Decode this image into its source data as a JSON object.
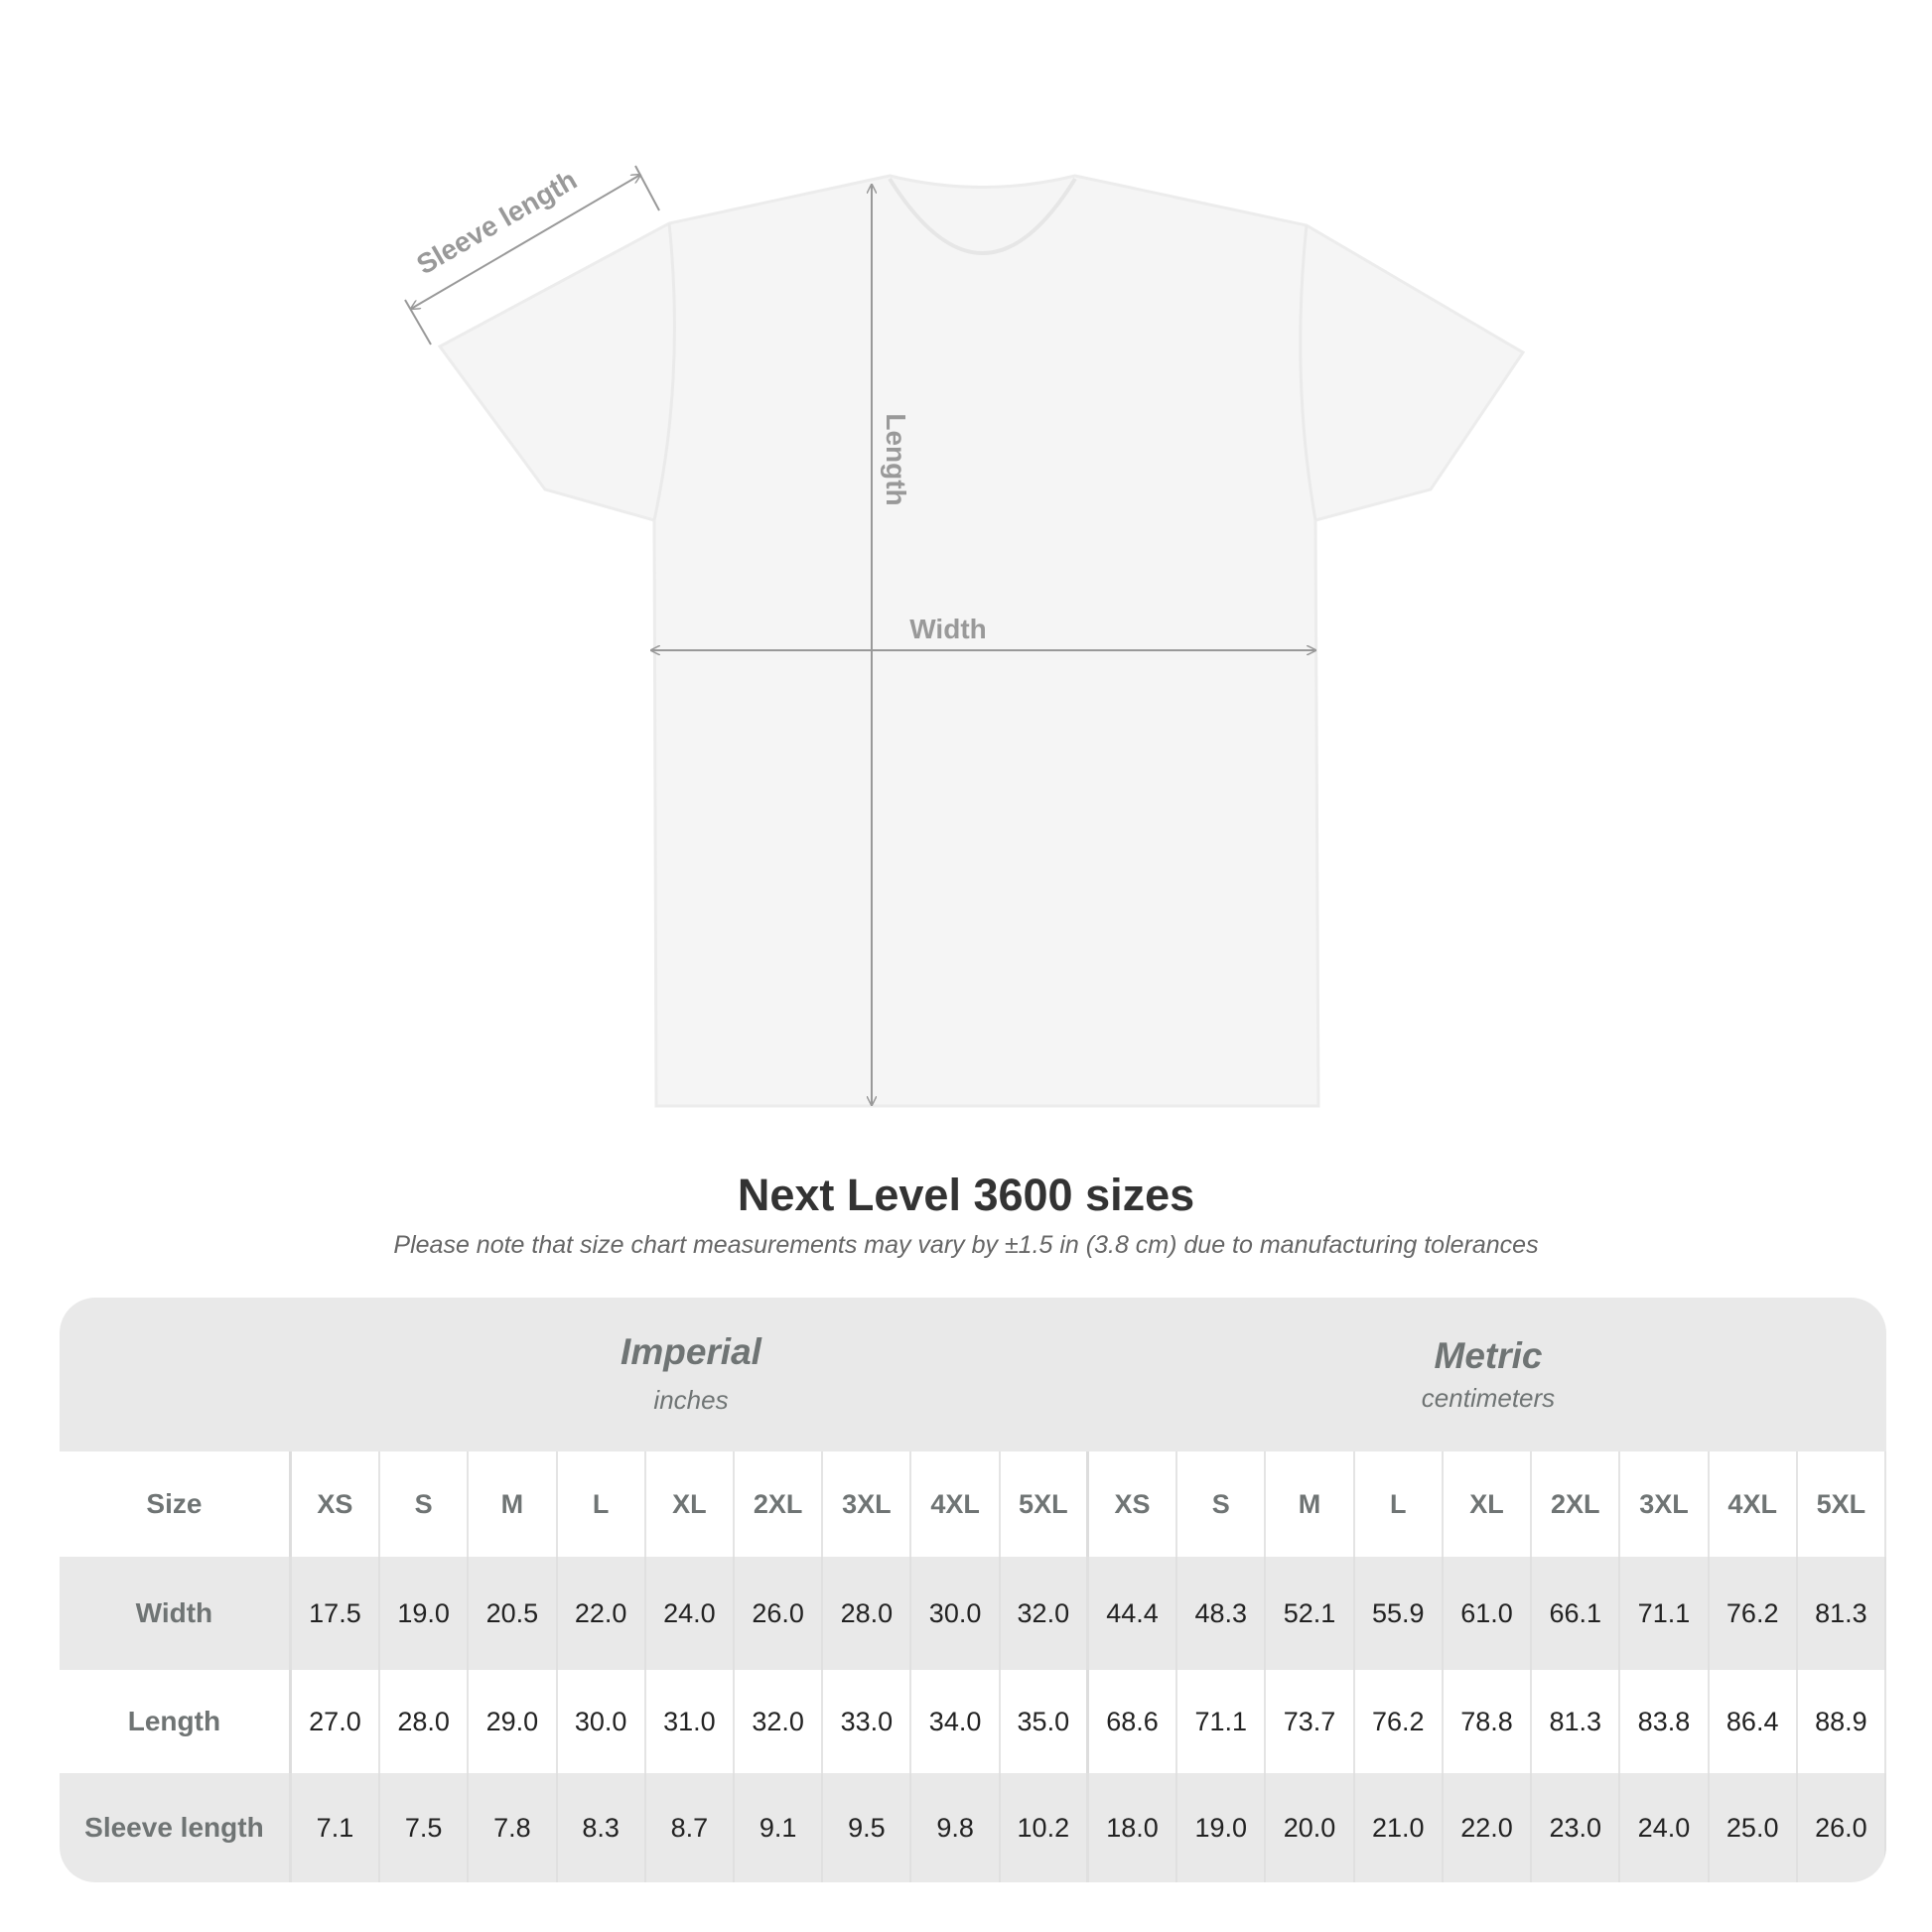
{
  "diagram": {
    "sleeve_label": "Sleeve length",
    "length_label": "Length",
    "width_label": "Width"
  },
  "title": "Next Level 3600 sizes",
  "subtitle": "Please note that size chart measurements may vary by ±1.5 in (3.8 cm) due to manufacturing tolerances",
  "table": {
    "imperial": {
      "title": "Imperial",
      "unit": "inches"
    },
    "metric": {
      "title": "Metric",
      "unit": "centimeters"
    },
    "size_label": "Size",
    "sizes": [
      "XS",
      "S",
      "M",
      "L",
      "XL",
      "2XL",
      "3XL",
      "4XL",
      "5XL"
    ],
    "rows": [
      {
        "label": "Width",
        "imperial": [
          "17.5",
          "19.0",
          "20.5",
          "22.0",
          "24.0",
          "26.0",
          "28.0",
          "30.0",
          "32.0"
        ],
        "metric": [
          "44.4",
          "48.3",
          "52.1",
          "55.9",
          "61.0",
          "66.1",
          "71.1",
          "76.2",
          "81.3"
        ]
      },
      {
        "label": "Length",
        "imperial": [
          "27.0",
          "28.0",
          "29.0",
          "30.0",
          "31.0",
          "32.0",
          "33.0",
          "34.0",
          "35.0"
        ],
        "metric": [
          "68.6",
          "71.1",
          "73.7",
          "76.2",
          "78.8",
          "81.3",
          "83.8",
          "86.4",
          "88.9"
        ]
      },
      {
        "label": "Sleeve length",
        "imperial": [
          "7.1",
          "7.5",
          "7.8",
          "8.3",
          "8.7",
          "9.1",
          "9.5",
          "9.8",
          "10.2"
        ],
        "metric": [
          "18.0",
          "19.0",
          "20.0",
          "21.0",
          "22.0",
          "23.0",
          "24.0",
          "25.0",
          "26.0"
        ]
      }
    ]
  },
  "colors": {
    "table_bg": "#e9e9e9",
    "header_text": "#6f7474",
    "value_text": "#222222",
    "measure_line": "#999999"
  }
}
